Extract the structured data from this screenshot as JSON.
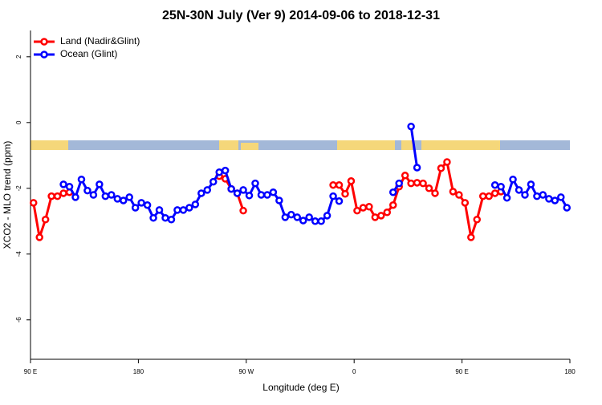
{
  "chart_data": {
    "type": "line",
    "title": "25N-30N July (Ver 9)   2014-09-06 to 2018-12-31",
    "x_label": "Longitude (deg E)",
    "y_label": "XCO2 - MLO trend (ppm)",
    "x": [
      92.5,
      97.5,
      102.5,
      107.5,
      112.5,
      117.5,
      122.5,
      127.5,
      132.5,
      137.5,
      142.5,
      147.5,
      152.5,
      157.5,
      162.5,
      167.5,
      172.5,
      177.5,
      182.5,
      187.5,
      192.5,
      197.5,
      202.5,
      207.5,
      212.5,
      217.5,
      222.5,
      227.5,
      232.5,
      237.5,
      242.5,
      247.5,
      252.5,
      257.5,
      262.5,
      267.5,
      272.5,
      277.5,
      282.5,
      287.5,
      292.5,
      297.5,
      302.5,
      307.5,
      312.5,
      317.5,
      322.5,
      327.5,
      332.5,
      337.5,
      342.5,
      347.5,
      352.5,
      357.5,
      362.5,
      367.5,
      372.5,
      377.5,
      382.5,
      387.5,
      392.5,
      397.5,
      402.5,
      407.5,
      412.5,
      417.5,
      422.5,
      427.5,
      432.5,
      437.5,
      442.5,
      447.5,
      452.5,
      457.5,
      462.5,
      467.5,
      472.5,
      477.5,
      482.5,
      487.5,
      492.5,
      497.5,
      502.5,
      507.5,
      512.5,
      517.5,
      522.5,
      527.5,
      532.5,
      537.5
    ],
    "series": [
      {
        "name": "Land (Nadir&Glint)",
        "color": "#ff0000",
        "values": [
          -2.44,
          -3.49,
          -2.95,
          -2.24,
          -2.24,
          -2.15,
          -2.12,
          null,
          null,
          null,
          null,
          null,
          null,
          null,
          null,
          null,
          null,
          null,
          null,
          null,
          null,
          null,
          null,
          null,
          null,
          null,
          null,
          null,
          null,
          null,
          null,
          -1.63,
          -1.71,
          -2.02,
          -2.15,
          -2.68,
          null,
          null,
          null,
          null,
          null,
          null,
          null,
          null,
          null,
          null,
          null,
          null,
          null,
          null,
          -1.9,
          -1.9,
          -2.17,
          -1.78,
          -2.68,
          -2.59,
          -2.56,
          -2.88,
          -2.83,
          -2.73,
          -2.51,
          -1.95,
          -1.61,
          -1.85,
          -1.83,
          -1.85,
          -2.0,
          -2.15,
          -1.39,
          -1.2,
          -2.1,
          -2.2,
          -2.44,
          -3.49,
          -2.95,
          -2.24,
          -2.24,
          -2.15,
          -2.1,
          null,
          null,
          null,
          null,
          null,
          null,
          null,
          null,
          null,
          null,
          null
        ]
      },
      {
        "name": "Ocean (Glint)",
        "color": "#0000ff",
        "values": [
          null,
          null,
          null,
          null,
          null,
          -1.88,
          -1.95,
          -2.27,
          -1.73,
          -2.07,
          -2.2,
          -1.88,
          -2.24,
          -2.2,
          -2.32,
          -2.37,
          -2.27,
          -2.59,
          -2.44,
          -2.51,
          -2.9,
          -2.66,
          -2.9,
          -2.95,
          -2.66,
          -2.66,
          -2.59,
          -2.49,
          -2.15,
          -2.05,
          -1.8,
          -1.51,
          -1.46,
          -2.02,
          -2.15,
          -2.05,
          -2.22,
          -1.85,
          -2.2,
          -2.2,
          -2.12,
          -2.37,
          -2.88,
          -2.8,
          -2.88,
          -2.98,
          -2.88,
          -3.0,
          -3.0,
          -2.83,
          -2.24,
          -2.39,
          null,
          null,
          null,
          null,
          null,
          null,
          null,
          null,
          -2.12,
          -1.85,
          null,
          -0.12,
          -1.37,
          null,
          null,
          null,
          null,
          null,
          null,
          null,
          null,
          null,
          null,
          null,
          null,
          -1.9,
          -1.95,
          -2.29,
          -1.73,
          -2.05,
          -2.2,
          -1.88,
          -2.24,
          -2.2,
          -2.32,
          -2.37,
          -2.27,
          -2.59
        ]
      }
    ],
    "xlim": [
      90,
      540
    ],
    "xticks": [
      {
        "value": 90,
        "label": "90 E"
      },
      {
        "value": 180,
        "label": "180"
      },
      {
        "value": 270,
        "label": "90 W"
      },
      {
        "value": 360,
        "label": "0"
      },
      {
        "value": 450,
        "label": "90 E"
      },
      {
        "value": 540,
        "label": "180"
      }
    ],
    "ylim": [
      -7.2,
      2.8
    ],
    "yticks": [
      -6,
      -4,
      -2,
      0,
      2
    ],
    "legend": "top-left"
  }
}
